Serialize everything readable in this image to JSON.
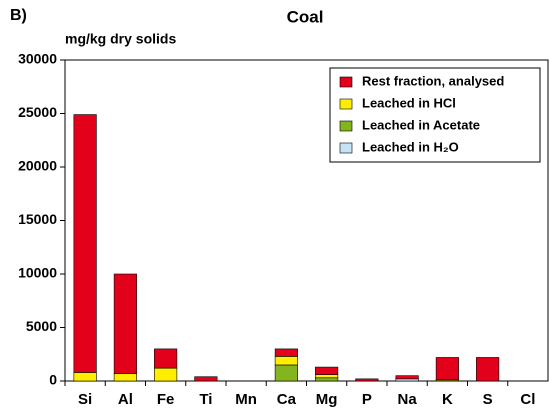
{
  "chart_data": {
    "type": "stacked_bar",
    "panel_label": "B)",
    "title": "Coal",
    "ylabel": "mg/kg dry solids",
    "categories": [
      "Si",
      "Al",
      "Fe",
      "Ti",
      "Mn",
      "Ca",
      "Mg",
      "P",
      "Na",
      "K",
      "S",
      "Cl"
    ],
    "series": [
      {
        "name": "Leached in H₂O",
        "color": "#c6e2f5",
        "values": [
          0,
          0,
          0,
          0,
          0,
          0,
          0,
          0,
          200,
          0,
          0,
          0
        ]
      },
      {
        "name": "Leached in Acetate",
        "color": "#84b51f",
        "values": [
          0,
          0,
          0,
          0,
          0,
          1500,
          300,
          0,
          0,
          0,
          0,
          0
        ]
      },
      {
        "name": "Leached in HCl",
        "color": "#ffee00",
        "values": [
          800,
          700,
          1200,
          0,
          0,
          800,
          300,
          0,
          0,
          100,
          0,
          0
        ]
      },
      {
        "name": "Rest fraction, analysed",
        "color": "#e3001b",
        "values": [
          24100,
          9300,
          1800,
          400,
          0,
          700,
          700,
          200,
          300,
          2100,
          2200,
          0
        ]
      }
    ],
    "ylim": [
      0,
      30000
    ],
    "yticks": [
      0,
      5000,
      10000,
      15000,
      20000,
      25000,
      30000
    ],
    "legend": "upper right"
  }
}
